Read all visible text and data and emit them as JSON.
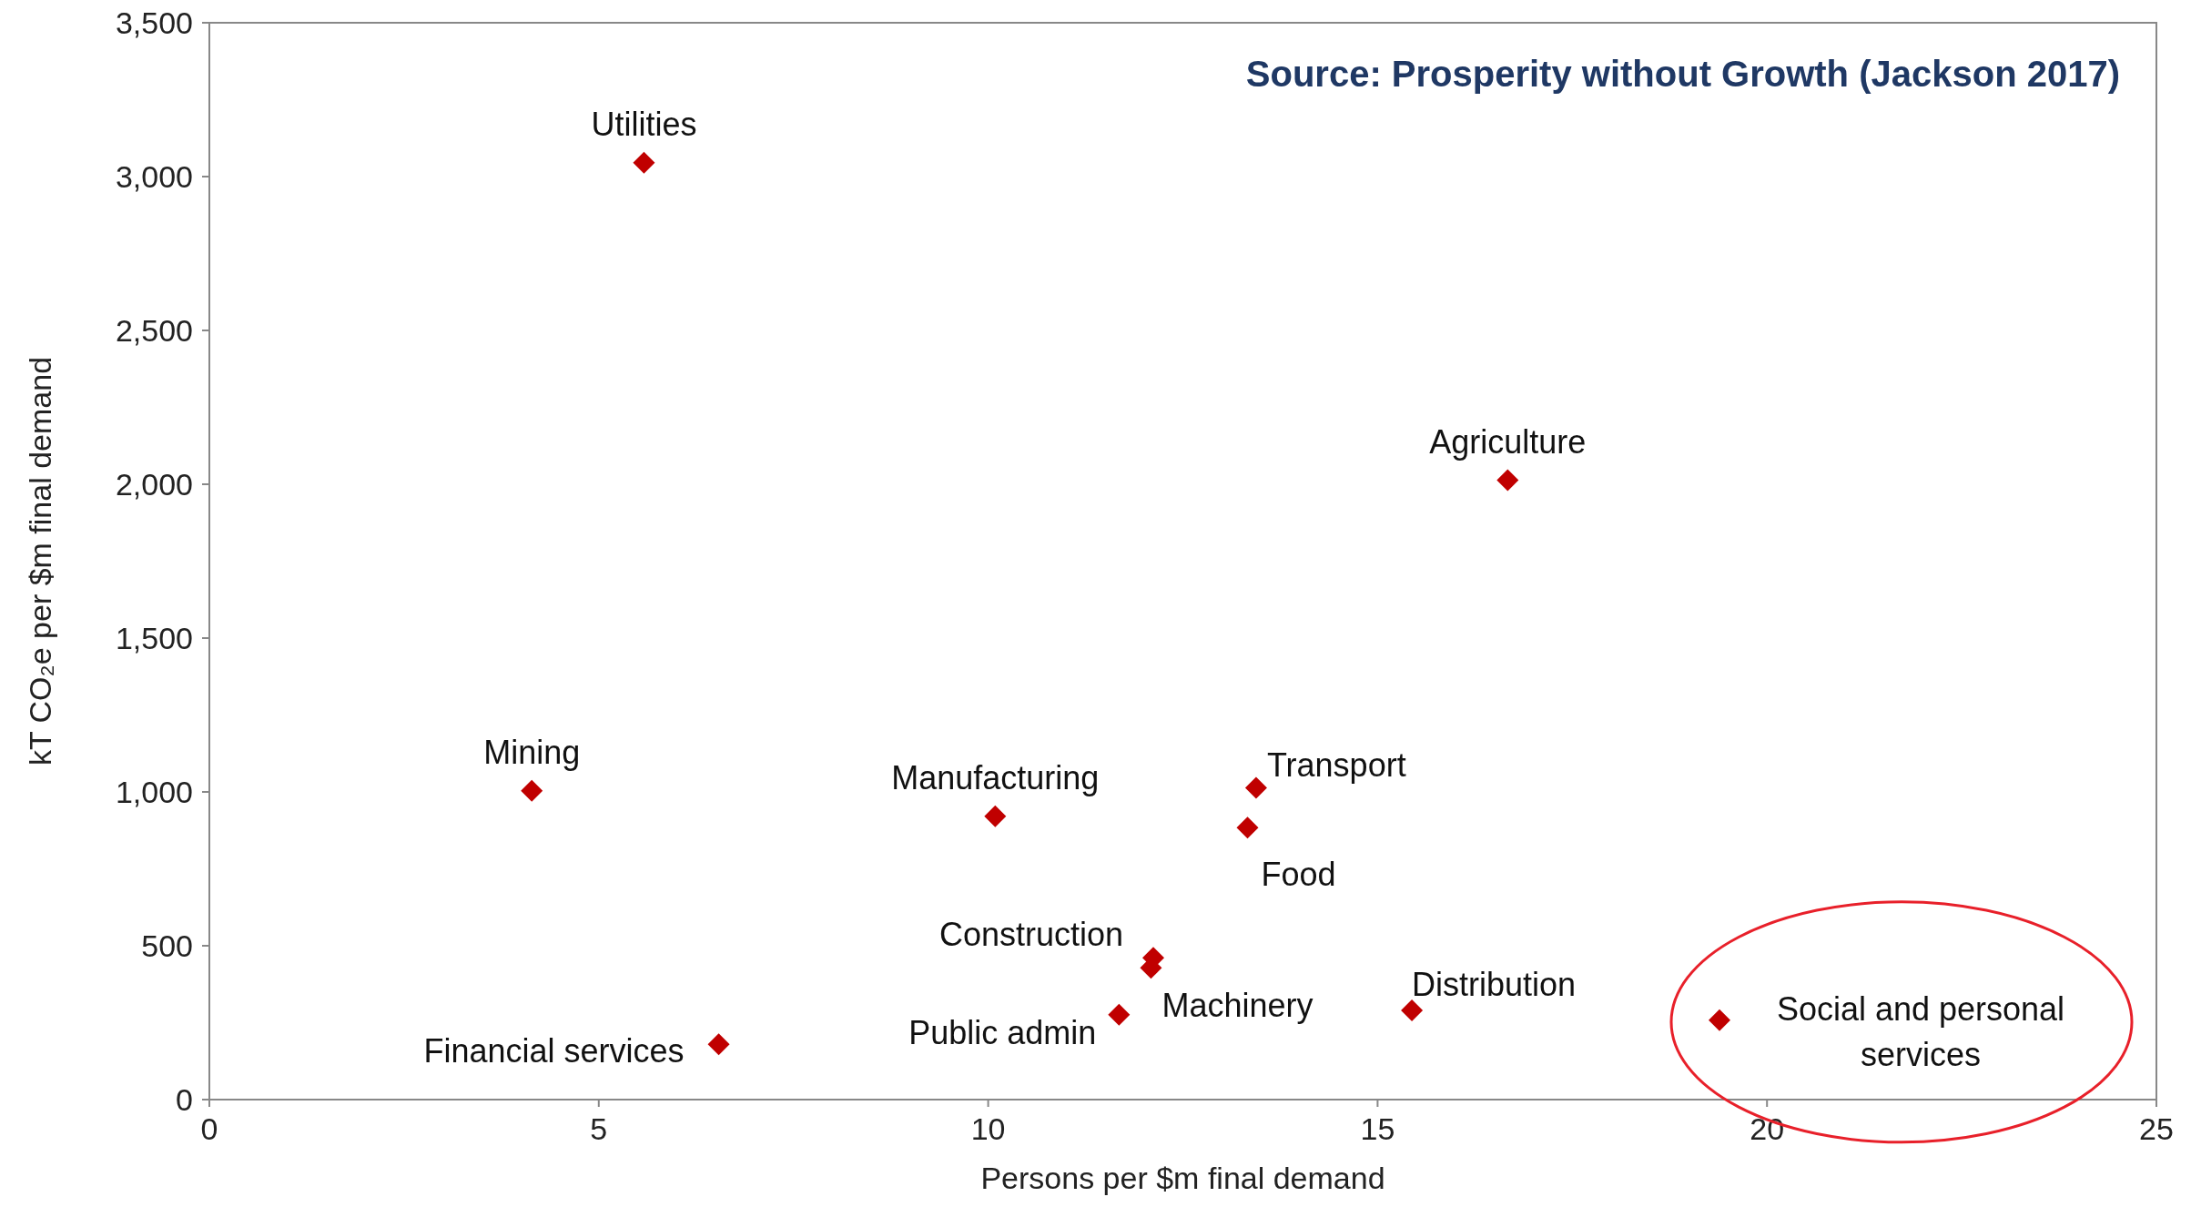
{
  "chart_data": {
    "type": "scatter",
    "xlabel": "Persons per $m final demand",
    "ylabel": "kT CO₂e  per $m final demand",
    "x": [
      5.58,
      16.67,
      4.14,
      10.09,
      13.44,
      13.33,
      12.12,
      12.09,
      11.68,
      6.54,
      15.44,
      19.39
    ],
    "series": [
      {
        "color": "#c00000",
        "values": [
          3045,
          2013,
          1004,
          921,
          1013,
          884,
          461,
          428,
          276,
          180,
          290,
          258
        ]
      }
    ],
    "xlim": [
      0,
      25
    ],
    "xticks": [
      0,
      5,
      10,
      15,
      20,
      25
    ],
    "ylim": [
      0,
      3500
    ],
    "yticks": [
      {
        "value": 0,
        "label": "0"
      },
      {
        "value": 500,
        "label": "500"
      },
      {
        "value": 1000,
        "label": "1,000"
      },
      {
        "value": 1500,
        "label": "1,500"
      },
      {
        "value": 2000,
        "label": "2,000"
      },
      {
        "value": 2500,
        "label": "2,500"
      },
      {
        "value": 3000,
        "label": "3,000"
      },
      {
        "value": 3500,
        "label": "3,500"
      }
    ],
    "marker": "diamond",
    "grid": false,
    "annotations": [
      "Source: Prosperity without Growth (Jackson 2017)",
      {
        "text": "Utilities",
        "x": 5.58,
        "y": 3045
      },
      {
        "text": "Agriculture",
        "x": 16.67,
        "y": 2013
      },
      {
        "text": "Mining",
        "x": 4.14,
        "y": 1004
      },
      {
        "text": "Manufacturing",
        "x": 10.09,
        "y": 921
      },
      {
        "text": "Transport",
        "x": 13.44,
        "y": 1013
      },
      {
        "text": "Food",
        "x": 13.33,
        "y": 884
      },
      {
        "text": "Construction",
        "x": 12.12,
        "y": 461
      },
      {
        "text": "Machinery",
        "x": 12.09,
        "y": 428
      },
      {
        "text": "Public admin",
        "x": 11.68,
        "y": 276
      },
      {
        "text": "Financial services",
        "x": 6.54,
        "y": 180
      },
      {
        "text": "Distribution",
        "x": 15.44,
        "y": 290
      },
      {
        "text": "Social and personal services",
        "x": 19.39,
        "y": 258
      }
    ]
  }
}
